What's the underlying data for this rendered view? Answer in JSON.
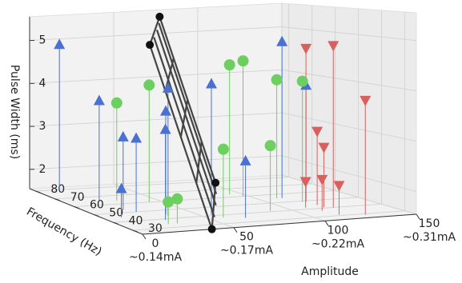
{
  "chart_data": {
    "type": "scatter3d",
    "xlabel": "Amplitude",
    "ylabel": "Frequency (Hz)",
    "zlabel": "Pulse Width (ms)",
    "xlim": [
      0,
      150
    ],
    "ylim": [
      25,
      83
    ],
    "zlim": [
      1.55,
      5.55
    ],
    "xticks": [
      0,
      50,
      100,
      150
    ],
    "xtick_sublabels": [
      "~0.14mA",
      "~0.17mA",
      "~0.22mA",
      "~0.31mA"
    ],
    "yticks": [
      30,
      40,
      50,
      60,
      70,
      80
    ],
    "zticks": [
      2,
      3,
      4,
      5
    ],
    "grid": true,
    "series": [
      {
        "color": "#4a70d0",
        "marker": "triangle-up",
        "x": [
          13,
          20,
          20,
          24,
          10,
          34,
          35,
          28,
          56,
          68,
          113,
          119
        ],
        "y": [
          79,
          65,
          53,
          50,
          45,
          43,
          45,
          39,
          41,
          35,
          55,
          49
        ],
        "z": [
          4.9,
          3.75,
          3.1,
          3.1,
          2.14,
          4.2,
          3.7,
          3.4,
          4.25,
          2.7,
          4.9,
          4.0
        ]
      },
      {
        "color": "#6ccf5f",
        "marker": "circle",
        "x": [
          29,
          43,
          93,
          97,
          110,
          117,
          89,
          58,
          24,
          29
        ],
        "y": [
          64,
          60,
          63,
          60,
          55,
          49,
          41,
          37,
          34,
          34
        ],
        "z": [
          3.7,
          4.1,
          4.4,
          4.5,
          4.1,
          4.1,
          2.9,
          2.95,
          2.0,
          2.05
        ]
      },
      {
        "color": "#d9605d",
        "marker": "triangle-down",
        "x": [
          119,
          123,
          127,
          119,
          119,
          110,
          113,
          115
        ],
        "y": [
          49,
          40,
          29,
          44,
          41,
          42,
          37,
          31
        ],
        "z": [
          4.8,
          4.9,
          3.85,
          3.1,
          2.8,
          2.1,
          2.2,
          2.15
        ]
      }
    ],
    "plane": {
      "color": "#444444",
      "x": [
        38,
        104,
        71,
        4
      ],
      "y": [
        25,
        78,
        78,
        25
      ],
      "z": [
        1.55,
        1.55,
        5.43,
        5.3
      ]
    }
  }
}
